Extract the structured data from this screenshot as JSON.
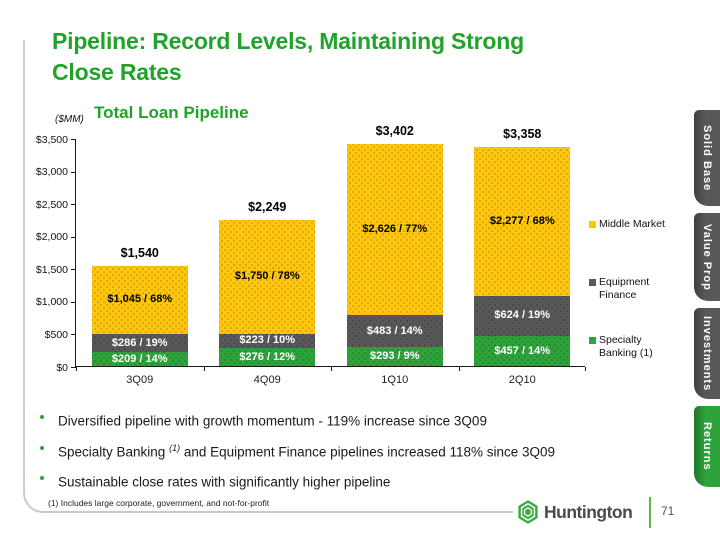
{
  "slide": {
    "title_lines": [
      "Pipeline: Record Levels, Maintaining Strong",
      "Close Rates"
    ],
    "title_color": "#21a32b",
    "footnote": "(1) Includes large corporate, government, and not-for-profit",
    "page_number": "71",
    "logo_text": "Huntington"
  },
  "chart": {
    "title": "Total Loan Pipeline",
    "units_label": "($MM)"
  },
  "chart_data": {
    "type": "bar",
    "stacked": true,
    "title": "Total Loan Pipeline",
    "units": "$MM",
    "categories": [
      "3Q09",
      "4Q09",
      "1Q10",
      "2Q10"
    ],
    "series": [
      {
        "name": "Specialty Banking (1)",
        "color": "#2ea33c",
        "label_color": "#ffffff",
        "values": [
          209,
          276,
          293,
          457
        ],
        "segment_labels": [
          "$209 / 14%",
          "$276 / 12%",
          "$293 / 9%",
          "$457 / 14%"
        ]
      },
      {
        "name": "Equipment Finance",
        "color": "#58585a",
        "label_color": "#ffffff",
        "values": [
          286,
          223,
          483,
          624
        ],
        "segment_labels": [
          "$286 / 19%",
          "$223 / 10%",
          "$483 / 14%",
          "$624 / 19%"
        ]
      },
      {
        "name": "Middle Market",
        "color": "#ffc60e",
        "label_color": "#000000",
        "values": [
          1045,
          1750,
          2626,
          2277
        ],
        "segment_labels": [
          "$1,045 / 68%",
          "$1,750 / 78%",
          "$2,626 / 77%",
          "$2,277 / 68%"
        ]
      }
    ],
    "totals": [
      1540,
      2249,
      3402,
      3358
    ],
    "total_labels": [
      "$1,540",
      "$2,249",
      "$3,402",
      "$3,358"
    ],
    "ylim": [
      0,
      3500
    ],
    "ytick_labels": [
      "$3,500",
      "$3,000",
      "$2,500",
      "$2,000",
      "$1,500",
      "$1,000",
      "$500",
      "$0"
    ],
    "grid": false,
    "legend_position": "right",
    "legend": [
      {
        "label": "Middle Market",
        "color": "#ffc60e"
      },
      {
        "label": "Equipment Finance",
        "color": "#58585a"
      },
      {
        "label": "Specialty Banking (1)",
        "color": "#2ea33c"
      }
    ]
  },
  "bullets": [
    {
      "pre": "Diversified pipeline with growth momentum - 119% increase since 3Q09",
      "sup": "",
      "post": ""
    },
    {
      "pre": "Specialty Banking ",
      "sup": "(1)",
      "post": " and Equipment Finance pipelines increased 118% since 3Q09"
    },
    {
      "pre": "Sustainable close rates with significantly higher pipeline",
      "sup": "",
      "post": ""
    }
  ],
  "side_tabs": [
    {
      "label": "Solid Base",
      "color": "#57585a",
      "active": false
    },
    {
      "label": "Value Prop",
      "color": "#57585a",
      "active": false
    },
    {
      "label": "Investments",
      "color": "#57585a",
      "active": false
    },
    {
      "label": "Returns",
      "color": "#2ea33c",
      "active": true
    }
  ]
}
